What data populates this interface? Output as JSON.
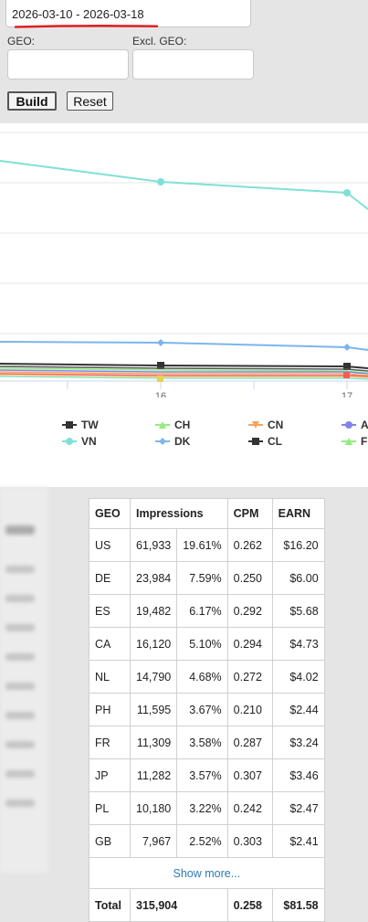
{
  "filters": {
    "date_range": "2026-03-10 - 2026-03-18",
    "geo_label": "GEO:",
    "geo_value": "",
    "excl_geo_label": "Excl. GEO:",
    "excl_geo_value": "",
    "build_label": "Build",
    "reset_label": "Reset",
    "underline_color": "#e02020"
  },
  "chart_data": {
    "type": "line",
    "x_tick_labels": [
      "16",
      "17"
    ],
    "legend": [
      {
        "name": "TW",
        "color": "#333333",
        "marker": "square"
      },
      {
        "name": "CH",
        "color": "#90ed7d",
        "marker": "triangle"
      },
      {
        "name": "CN",
        "color": "#f7a35c",
        "marker": "triangle-down"
      },
      {
        "name": "A",
        "color": "#8085e9",
        "marker": "circle"
      },
      {
        "name": "VN",
        "color": "#7fe0d6",
        "marker": "circle"
      },
      {
        "name": "DK",
        "color": "#7cb5ec",
        "marker": "diamond"
      },
      {
        "name": "CL",
        "color": "#333333",
        "marker": "square"
      },
      {
        "name": "FI",
        "color": "#90ed7d",
        "marker": "triangle"
      }
    ],
    "grid": true
  },
  "table": {
    "headers": [
      "GEO",
      "Impressions",
      "CPM",
      "EARN"
    ],
    "rows": [
      {
        "geo": "US",
        "impressions": "61,933",
        "share": "19.61%",
        "cpm": "0.262",
        "earn": "$16.20"
      },
      {
        "geo": "DE",
        "impressions": "23,984",
        "share": "7.59%",
        "cpm": "0.250",
        "earn": "$6.00"
      },
      {
        "geo": "ES",
        "impressions": "19,482",
        "share": "6.17%",
        "cpm": "0.292",
        "earn": "$5.68"
      },
      {
        "geo": "CA",
        "impressions": "16,120",
        "share": "5.10%",
        "cpm": "0.294",
        "earn": "$4.73"
      },
      {
        "geo": "NL",
        "impressions": "14,790",
        "share": "4.68%",
        "cpm": "0.272",
        "earn": "$4.02"
      },
      {
        "geo": "PH",
        "impressions": "11,595",
        "share": "3.67%",
        "cpm": "0.210",
        "earn": "$2.44"
      },
      {
        "geo": "FR",
        "impressions": "11,309",
        "share": "3.58%",
        "cpm": "0.287",
        "earn": "$3.24"
      },
      {
        "geo": "JP",
        "impressions": "11,282",
        "share": "3.57%",
        "cpm": "0.307",
        "earn": "$3.46"
      },
      {
        "geo": "PL",
        "impressions": "10,180",
        "share": "3.22%",
        "cpm": "0.242",
        "earn": "$2.47"
      },
      {
        "geo": "GB",
        "impressions": "7,967",
        "share": "2.52%",
        "cpm": "0.303",
        "earn": "$2.41"
      }
    ],
    "show_more": "Show more...",
    "total_label": "Total",
    "total_impressions": "315,904",
    "total_cpm": "0.258",
    "total_earn": "$81.58"
  }
}
